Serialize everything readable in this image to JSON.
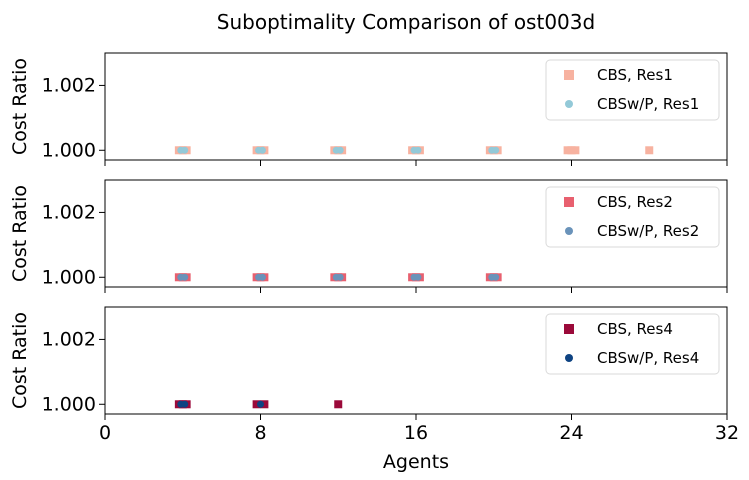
{
  "chart_data": {
    "type": "scatter",
    "title": "Suboptimality Comparison of ost003d",
    "xlabel": "Agents",
    "x_ticks": [
      "0",
      "8",
      "16",
      "24",
      "32"
    ],
    "xlim": [
      0,
      32
    ],
    "panels": [
      {
        "ylabel": "Cost Ratio",
        "ylim": [
          0.9997,
          1.003
        ],
        "y_ticks": [
          "1.000",
          "1.002"
        ],
        "legend_position": "top-right",
        "series": [
          {
            "name": "CBS, Res1",
            "marker": "square",
            "color": "#f7b2a0",
            "points": [
              [
                3.8,
                1.0
              ],
              [
                4.0,
                1.0
              ],
              [
                4.2,
                1.0
              ],
              [
                7.8,
                1.0
              ],
              [
                8.0,
                1.0
              ],
              [
                8.2,
                1.0
              ],
              [
                11.8,
                1.0
              ],
              [
                12.0,
                1.0
              ],
              [
                12.2,
                1.0
              ],
              [
                15.8,
                1.0
              ],
              [
                16.0,
                1.0
              ],
              [
                16.2,
                1.0
              ],
              [
                19.8,
                1.0
              ],
              [
                20.0,
                1.0
              ],
              [
                20.2,
                1.0
              ],
              [
                23.8,
                1.0
              ],
              [
                24.0,
                1.0
              ],
              [
                24.2,
                1.0
              ],
              [
                28.0,
                1.0
              ]
            ]
          },
          {
            "name": "CBSw/P, Res1",
            "marker": "circle",
            "color": "#93c9d8",
            "points": [
              [
                3.9,
                1.0
              ],
              [
                4.1,
                1.0
              ],
              [
                7.9,
                1.0
              ],
              [
                8.1,
                1.0
              ],
              [
                11.9,
                1.0
              ],
              [
                12.1,
                1.0
              ],
              [
                15.9,
                1.0
              ],
              [
                16.1,
                1.0
              ],
              [
                19.9,
                1.0
              ],
              [
                20.1,
                1.0
              ]
            ]
          }
        ]
      },
      {
        "ylabel": "Cost Ratio",
        "ylim": [
          0.9997,
          1.003
        ],
        "y_ticks": [
          "1.000",
          "1.002"
        ],
        "legend_position": "top-right",
        "series": [
          {
            "name": "CBS, Res2",
            "marker": "square",
            "color": "#e8606f",
            "points": [
              [
                3.8,
                1.0
              ],
              [
                4.0,
                1.0
              ],
              [
                4.2,
                1.0
              ],
              [
                7.8,
                1.0
              ],
              [
                8.0,
                1.0
              ],
              [
                8.2,
                1.0
              ],
              [
                11.8,
                1.0
              ],
              [
                12.0,
                1.0
              ],
              [
                12.2,
                1.0
              ],
              [
                15.8,
                1.0
              ],
              [
                16.0,
                1.0
              ],
              [
                16.2,
                1.0
              ],
              [
                19.8,
                1.0
              ],
              [
                20.0,
                1.0
              ],
              [
                20.2,
                1.0
              ]
            ]
          },
          {
            "name": "CBSw/P, Res2",
            "marker": "circle",
            "color": "#6a93ba",
            "points": [
              [
                3.9,
                1.0
              ],
              [
                4.1,
                1.0
              ],
              [
                7.9,
                1.0
              ],
              [
                8.1,
                1.0
              ],
              [
                11.9,
                1.0
              ],
              [
                12.1,
                1.0
              ],
              [
                15.9,
                1.0
              ],
              [
                16.1,
                1.0
              ],
              [
                19.9,
                1.0
              ],
              [
                20.1,
                1.0
              ]
            ]
          }
        ]
      },
      {
        "ylabel": "Cost Ratio",
        "ylim": [
          0.9997,
          1.003
        ],
        "y_ticks": [
          "1.000",
          "1.002"
        ],
        "legend_position": "top-right",
        "series": [
          {
            "name": "CBS, Res4",
            "marker": "square",
            "color": "#9b0a3a",
            "points": [
              [
                3.8,
                1.0
              ],
              [
                4.0,
                1.0
              ],
              [
                4.2,
                1.0
              ],
              [
                7.8,
                1.0
              ],
              [
                8.2,
                1.0
              ],
              [
                12.0,
                1.0
              ]
            ]
          },
          {
            "name": "CBSw/P, Res4",
            "marker": "circle",
            "color": "#0e4382",
            "points": [
              [
                3.9,
                1.0
              ],
              [
                4.1,
                1.0
              ],
              [
                8.0,
                1.0
              ]
            ]
          }
        ]
      }
    ]
  }
}
